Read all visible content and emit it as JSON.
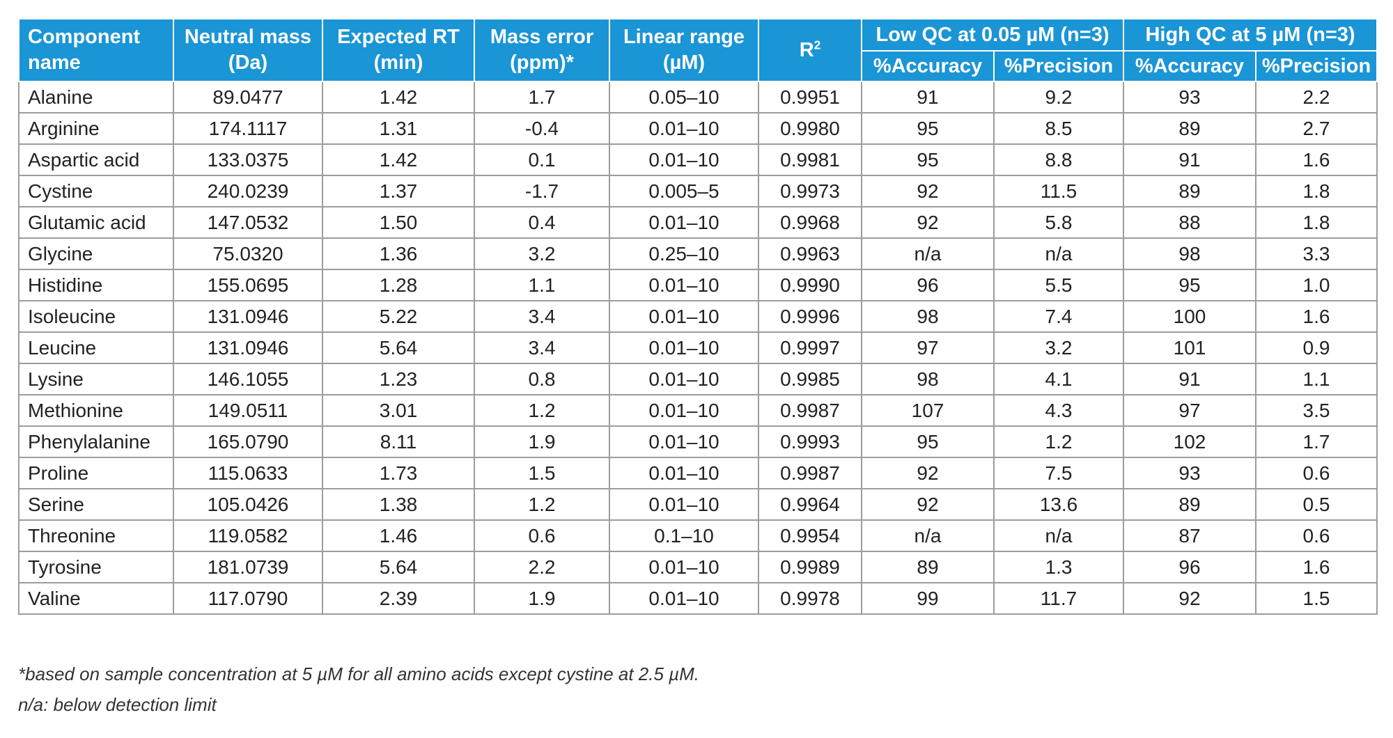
{
  "table": {
    "headers": {
      "component_name": "Component name",
      "neutral_mass": "Neutral mass (Da)",
      "expected_rt": "Expected RT (min)",
      "mass_error": "Mass error (ppm)*",
      "linear_range": "Linear range (µM)",
      "r2_base": "R",
      "r2_sup": "2",
      "low_qc_group": "Low QC at 0.05 µM (n=3)",
      "high_qc_group": "High  QC at 5 µM (n=3)",
      "low_accuracy": "%Accuracy",
      "low_precision": "%Precision",
      "high_accuracy": "%Accuracy",
      "high_precision": "%Precision"
    },
    "rows": [
      [
        "Alanine",
        "89.0477",
        "1.42",
        "1.7",
        "0.05–10",
        "0.9951",
        "91",
        "9.2",
        "93",
        "2.2"
      ],
      [
        "Arginine",
        "174.1117",
        "1.31",
        "-0.4",
        "0.01–10",
        "0.9980",
        "95",
        "8.5",
        "89",
        "2.7"
      ],
      [
        "Aspartic acid",
        "133.0375",
        "1.42",
        "0.1",
        "0.01–10",
        "0.9981",
        "95",
        "8.8",
        "91",
        "1.6"
      ],
      [
        "Cystine",
        "240.0239",
        "1.37",
        "-1.7",
        "0.005–5",
        "0.9973",
        "92",
        "11.5",
        "89",
        "1.8"
      ],
      [
        "Glutamic acid",
        "147.0532",
        "1.50",
        "0.4",
        "0.01–10",
        "0.9968",
        "92",
        "5.8",
        "88",
        "1.8"
      ],
      [
        "Glycine",
        "75.0320",
        "1.36",
        "3.2",
        "0.25–10",
        "0.9963",
        "n/a",
        "n/a",
        "98",
        "3.3"
      ],
      [
        "Histidine",
        "155.0695",
        "1.28",
        "1.1",
        "0.01–10",
        "0.9990",
        "96",
        "5.5",
        "95",
        "1.0"
      ],
      [
        "Isoleucine",
        "131.0946",
        "5.22",
        "3.4",
        "0.01–10",
        "0.9996",
        "98",
        "7.4",
        "100",
        "1.6"
      ],
      [
        "Leucine",
        "131.0946",
        "5.64",
        "3.4",
        "0.01–10",
        "0.9997",
        "97",
        "3.2",
        "101",
        "0.9"
      ],
      [
        "Lysine",
        "146.1055",
        "1.23",
        "0.8",
        "0.01–10",
        "0.9985",
        "98",
        "4.1",
        "91",
        "1.1"
      ],
      [
        "Methionine",
        "149.0511",
        "3.01",
        "1.2",
        "0.01–10",
        "0.9987",
        "107",
        "4.3",
        "97",
        "3.5"
      ],
      [
        "Phenylalanine",
        "165.0790",
        "8.11",
        "1.9",
        "0.01–10",
        "0.9993",
        "95",
        "1.2",
        "102",
        "1.7"
      ],
      [
        "Proline",
        "115.0633",
        "1.73",
        "1.5",
        "0.01–10",
        "0.9987",
        "92",
        "7.5",
        "93",
        "0.6"
      ],
      [
        "Serine",
        "105.0426",
        "1.38",
        "1.2",
        "0.01–10",
        "0.9964",
        "92",
        "13.6",
        "89",
        "0.5"
      ],
      [
        "Threonine",
        "119.0582",
        "1.46",
        "0.6",
        "0.1–10",
        "0.9954",
        "n/a",
        "n/a",
        "87",
        "0.6"
      ],
      [
        "Tyrosine",
        "181.0739",
        "5.64",
        "2.2",
        "0.01–10",
        "0.9989",
        "89",
        "1.3",
        "96",
        "1.6"
      ],
      [
        "Valine",
        "117.0790",
        "2.39",
        "1.9",
        "0.01–10",
        "0.9978",
        "99",
        "11.7",
        "92",
        "1.5"
      ]
    ]
  },
  "footnotes": {
    "mass_error_note": "*based on sample concentration at 5 µM for all amino acids except cystine at 2.5 µM.",
    "na_note": "n/a: below detection limit"
  },
  "colors": {
    "header_bg": "#1a95d6",
    "header_text": "#ffffff",
    "grid_line": "#9c9c9c"
  }
}
